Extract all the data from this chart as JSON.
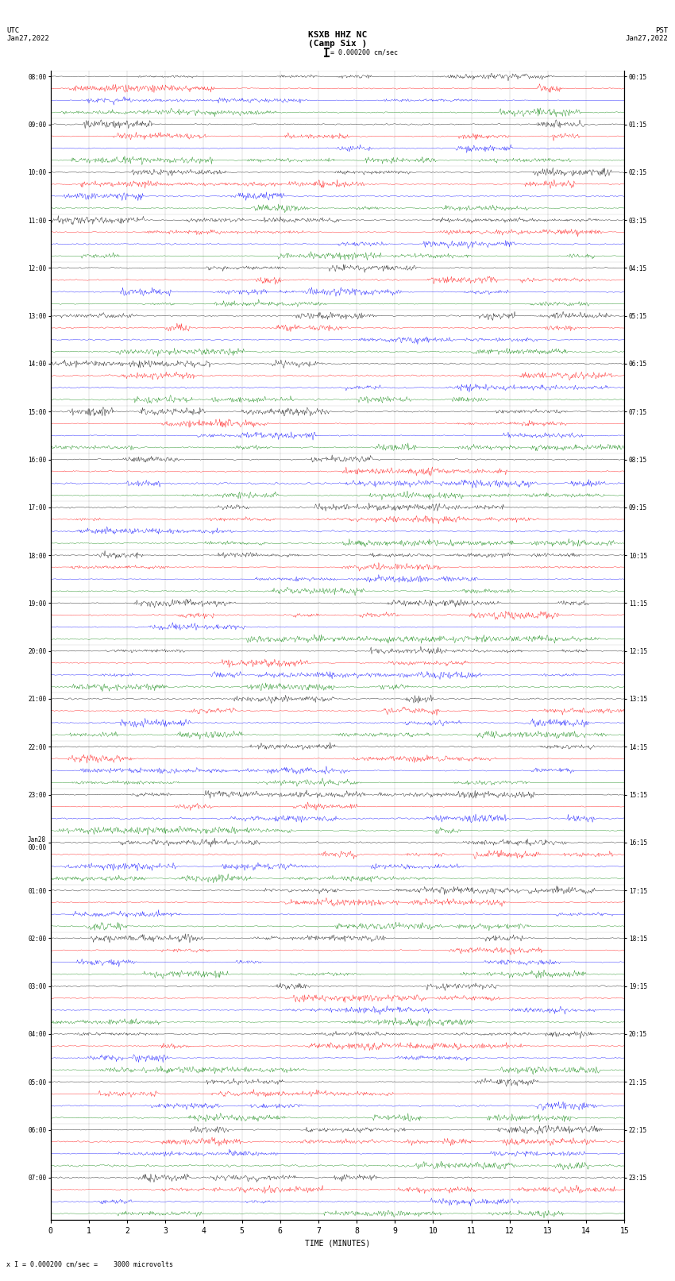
{
  "title_line1": "KSXB HHZ NC",
  "title_line2": "(Camp Six )",
  "scale_label": "= 0.000200 cm/sec",
  "bottom_label": "x I = 0.000200 cm/sec =    3000 microvolts",
  "xlabel": "TIME (MINUTES)",
  "left_label_utc": "UTC",
  "left_label_date": "Jan27,2022",
  "right_label_pst": "PST",
  "right_label_date": "Jan27,2022",
  "colors": [
    "black",
    "red",
    "blue",
    "green"
  ],
  "background": "white",
  "plot_bg": "white",
  "xmin": 0,
  "xmax": 15,
  "xticks": [
    0,
    1,
    2,
    3,
    4,
    5,
    6,
    7,
    8,
    9,
    10,
    11,
    12,
    13,
    14,
    15
  ],
  "n_groups": 24,
  "traces_per_group": 4,
  "seed": 42
}
